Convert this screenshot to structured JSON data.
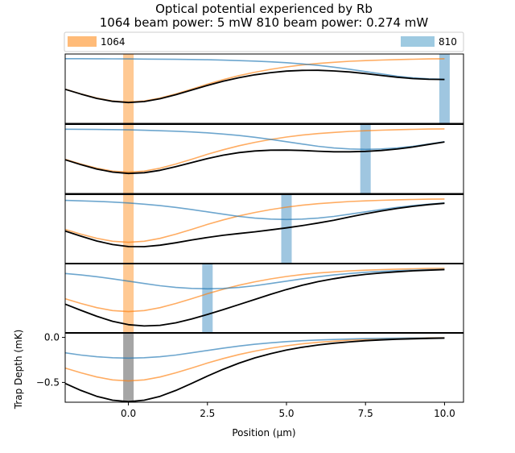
{
  "chart_data": {
    "type": "line",
    "title": "Optical potential experienced by Rb",
    "subtitle": "1064 beam power: 5 mW   810 beam power: 0.274 mW",
    "xlabel": "Position (μm)",
    "ylabel": "Trap Depth (mK)",
    "xlim": [
      -2,
      10.6
    ],
    "x_ticks": [
      0.0,
      2.5,
      5.0,
      7.5,
      10.0
    ],
    "x_tick_labels": [
      "0.0",
      "2.5",
      "5.0",
      "7.5",
      "10.0"
    ],
    "bottom_ylim": [
      -0.72,
      0.05
    ],
    "y_ticks": [
      0.0,
      -0.5
    ],
    "y_tick_labels": [
      "0.0",
      "−0.5"
    ],
    "legend": {
      "placement": "top",
      "entries": [
        {
          "label": "1064",
          "color": "#ffbb78"
        },
        {
          "label": "810",
          "color": "#9ecae1"
        }
      ]
    },
    "beam_1064_position": 0.0,
    "beam_810_positions": [
      10.0,
      7.5,
      5.0,
      2.5,
      0.0
    ],
    "colors": {
      "1064": "#ff7f0e",
      "810": "#1f77b4",
      "total": "#000000",
      "overlap": "#a5a5a5"
    },
    "panels": [
      {
        "beam_810_position": 10.0,
        "x": [
          -2,
          -1.5,
          -1,
          -0.5,
          0,
          0.5,
          1,
          1.5,
          2,
          2.5,
          3,
          3.5,
          4,
          4.5,
          5,
          5.5,
          6,
          6.5,
          7,
          7.5,
          8,
          8.5,
          9,
          9.5,
          10
        ],
        "series": [
          {
            "name": "1064",
            "values": [
              -0.34,
              -0.393,
              -0.44,
              -0.472,
              -0.484,
              -0.472,
              -0.44,
              -0.393,
              -0.34,
              -0.285,
              -0.235,
              -0.19,
              -0.152,
              -0.12,
              -0.093,
              -0.072,
              -0.055,
              -0.042,
              -0.031,
              -0.023,
              -0.017,
              -0.012,
              -0.008,
              -0.005,
              -0.003
            ]
          },
          {
            "name": "810",
            "values": [
              -0.002,
              -0.002,
              -0.003,
              -0.004,
              -0.005,
              -0.006,
              -0.007,
              -0.009,
              -0.011,
              -0.014,
              -0.018,
              -0.023,
              -0.029,
              -0.037,
              -0.047,
              -0.06,
              -0.076,
              -0.096,
              -0.119,
              -0.145,
              -0.171,
              -0.196,
              -0.215,
              -0.226,
              -0.23
            ]
          },
          {
            "name": "total",
            "values": [
              -0.342,
              -0.395,
              -0.443,
              -0.476,
              -0.489,
              -0.478,
              -0.447,
              -0.402,
              -0.351,
              -0.299,
              -0.253,
              -0.213,
              -0.181,
              -0.157,
              -0.14,
              -0.132,
              -0.131,
              -0.138,
              -0.15,
              -0.168,
              -0.188,
              -0.208,
              -0.223,
              -0.231,
              -0.233
            ]
          }
        ]
      },
      {
        "beam_810_position": 7.5,
        "x": [
          -2,
          -1.5,
          -1,
          -0.5,
          0,
          0.5,
          1,
          1.5,
          2,
          2.5,
          3,
          3.5,
          4,
          4.5,
          5,
          5.5,
          6,
          6.5,
          7,
          7.5,
          8,
          8.5,
          9,
          9.5,
          10
        ],
        "series": [
          {
            "name": "1064",
            "values": [
              -0.34,
              -0.393,
              -0.44,
              -0.472,
              -0.484,
              -0.472,
              -0.44,
              -0.393,
              -0.34,
              -0.285,
              -0.235,
              -0.19,
              -0.152,
              -0.12,
              -0.093,
              -0.072,
              -0.055,
              -0.042,
              -0.031,
              -0.023,
              -0.017,
              -0.012,
              -0.008,
              -0.005,
              -0.003
            ]
          },
          {
            "name": "810",
            "values": [
              -0.006,
              -0.007,
              -0.009,
              -0.011,
              -0.014,
              -0.018,
              -0.023,
              -0.029,
              -0.037,
              -0.047,
              -0.06,
              -0.076,
              -0.096,
              -0.119,
              -0.145,
              -0.171,
              -0.196,
              -0.215,
              -0.226,
              -0.23,
              -0.226,
              -0.215,
              -0.196,
              -0.171,
              -0.145
            ]
          },
          {
            "name": "total",
            "values": [
              -0.346,
              -0.4,
              -0.449,
              -0.483,
              -0.498,
              -0.49,
              -0.463,
              -0.422,
              -0.377,
              -0.332,
              -0.295,
              -0.266,
              -0.248,
              -0.239,
              -0.238,
              -0.243,
              -0.251,
              -0.257,
              -0.257,
              -0.253,
              -0.243,
              -0.227,
              -0.204,
              -0.176,
              -0.148
            ]
          }
        ]
      },
      {
        "beam_810_position": 5.0,
        "x": [
          -2,
          -1.5,
          -1,
          -0.5,
          0,
          0.5,
          1,
          1.5,
          2,
          2.5,
          3,
          3.5,
          4,
          4.5,
          5,
          5.5,
          6,
          6.5,
          7,
          7.5,
          8,
          8.5,
          9,
          9.5,
          10
        ],
        "series": [
          {
            "name": "1064",
            "values": [
              -0.34,
              -0.393,
              -0.44,
              -0.472,
              -0.484,
              -0.472,
              -0.44,
              -0.393,
              -0.34,
              -0.285,
              -0.235,
              -0.19,
              -0.152,
              -0.12,
              -0.093,
              -0.072,
              -0.055,
              -0.042,
              -0.031,
              -0.023,
              -0.017,
              -0.012,
              -0.008,
              -0.005,
              -0.003
            ]
          },
          {
            "name": "810",
            "values": [
              -0.018,
              -0.023,
              -0.029,
              -0.037,
              -0.047,
              -0.06,
              -0.076,
              -0.096,
              -0.119,
              -0.145,
              -0.171,
              -0.196,
              -0.215,
              -0.226,
              -0.23,
              -0.226,
              -0.215,
              -0.196,
              -0.171,
              -0.145,
              -0.119,
              -0.096,
              -0.076,
              -0.06,
              -0.047
            ]
          },
          {
            "name": "total",
            "values": [
              -0.358,
              -0.416,
              -0.469,
              -0.509,
              -0.531,
              -0.532,
              -0.516,
              -0.489,
              -0.459,
              -0.43,
              -0.406,
              -0.386,
              -0.367,
              -0.346,
              -0.323,
              -0.298,
              -0.27,
              -0.238,
              -0.202,
              -0.168,
              -0.136,
              -0.108,
              -0.084,
              -0.065,
              -0.05
            ]
          }
        ]
      },
      {
        "beam_810_position": 2.5,
        "x": [
          -2,
          -1.5,
          -1,
          -0.5,
          0,
          0.5,
          1,
          1.5,
          2,
          2.5,
          3,
          3.5,
          4,
          4.5,
          5,
          5.5,
          6,
          6.5,
          7,
          7.5,
          8,
          8.5,
          9,
          9.5,
          10
        ],
        "series": [
          {
            "name": "1064",
            "values": [
              -0.34,
              -0.393,
              -0.44,
              -0.472,
              -0.484,
              -0.472,
              -0.44,
              -0.393,
              -0.34,
              -0.285,
              -0.235,
              -0.19,
              -0.152,
              -0.12,
              -0.093,
              -0.072,
              -0.055,
              -0.042,
              -0.031,
              -0.023,
              -0.017,
              -0.012,
              -0.008,
              -0.005,
              -0.003
            ]
          },
          {
            "name": "810",
            "values": [
              -0.06,
              -0.076,
              -0.096,
              -0.119,
              -0.145,
              -0.171,
              -0.196,
              -0.215,
              -0.226,
              -0.23,
              -0.226,
              -0.215,
              -0.196,
              -0.171,
              -0.145,
              -0.119,
              -0.096,
              -0.076,
              -0.06,
              -0.047,
              -0.037,
              -0.029,
              -0.023,
              -0.018,
              -0.014
            ]
          },
          {
            "name": "total",
            "values": [
              -0.4,
              -0.469,
              -0.536,
              -0.591,
              -0.629,
              -0.643,
              -0.636,
              -0.608,
              -0.566,
              -0.515,
              -0.461,
              -0.405,
              -0.348,
              -0.291,
              -0.238,
              -0.191,
              -0.151,
              -0.118,
              -0.091,
              -0.07,
              -0.054,
              -0.041,
              -0.031,
              -0.023,
              -0.017
            ]
          }
        ]
      },
      {
        "beam_810_position": 0.0,
        "x": [
          -2,
          -1.5,
          -1,
          -0.5,
          0,
          0.5,
          1,
          1.5,
          2,
          2.5,
          3,
          3.5,
          4,
          4.5,
          5,
          5.5,
          6,
          6.5,
          7,
          7.5,
          8,
          8.5,
          9,
          9.5,
          10
        ],
        "series": [
          {
            "name": "1064",
            "values": [
              -0.34,
              -0.393,
              -0.44,
              -0.472,
              -0.484,
              -0.472,
              -0.44,
              -0.393,
              -0.34,
              -0.285,
              -0.235,
              -0.19,
              -0.152,
              -0.12,
              -0.093,
              -0.072,
              -0.055,
              -0.042,
              -0.031,
              -0.023,
              -0.017,
              -0.012,
              -0.008,
              -0.005,
              -0.003
            ]
          },
          {
            "name": "810",
            "values": [
              -0.171,
              -0.196,
              -0.215,
              -0.226,
              -0.23,
              -0.226,
              -0.215,
              -0.196,
              -0.171,
              -0.145,
              -0.119,
              -0.096,
              -0.076,
              -0.06,
              -0.047,
              -0.037,
              -0.029,
              -0.023,
              -0.018,
              -0.014,
              -0.011,
              -0.009,
              -0.007,
              -0.006,
              -0.005
            ]
          },
          {
            "name": "total",
            "values": [
              -0.511,
              -0.589,
              -0.655,
              -0.698,
              -0.714,
              -0.698,
              -0.655,
              -0.589,
              -0.511,
              -0.43,
              -0.354,
              -0.286,
              -0.228,
              -0.18,
              -0.14,
              -0.109,
              -0.084,
              -0.065,
              -0.049,
              -0.037,
              -0.028,
              -0.021,
              -0.015,
              -0.011,
              -0.008
            ]
          }
        ]
      }
    ]
  }
}
